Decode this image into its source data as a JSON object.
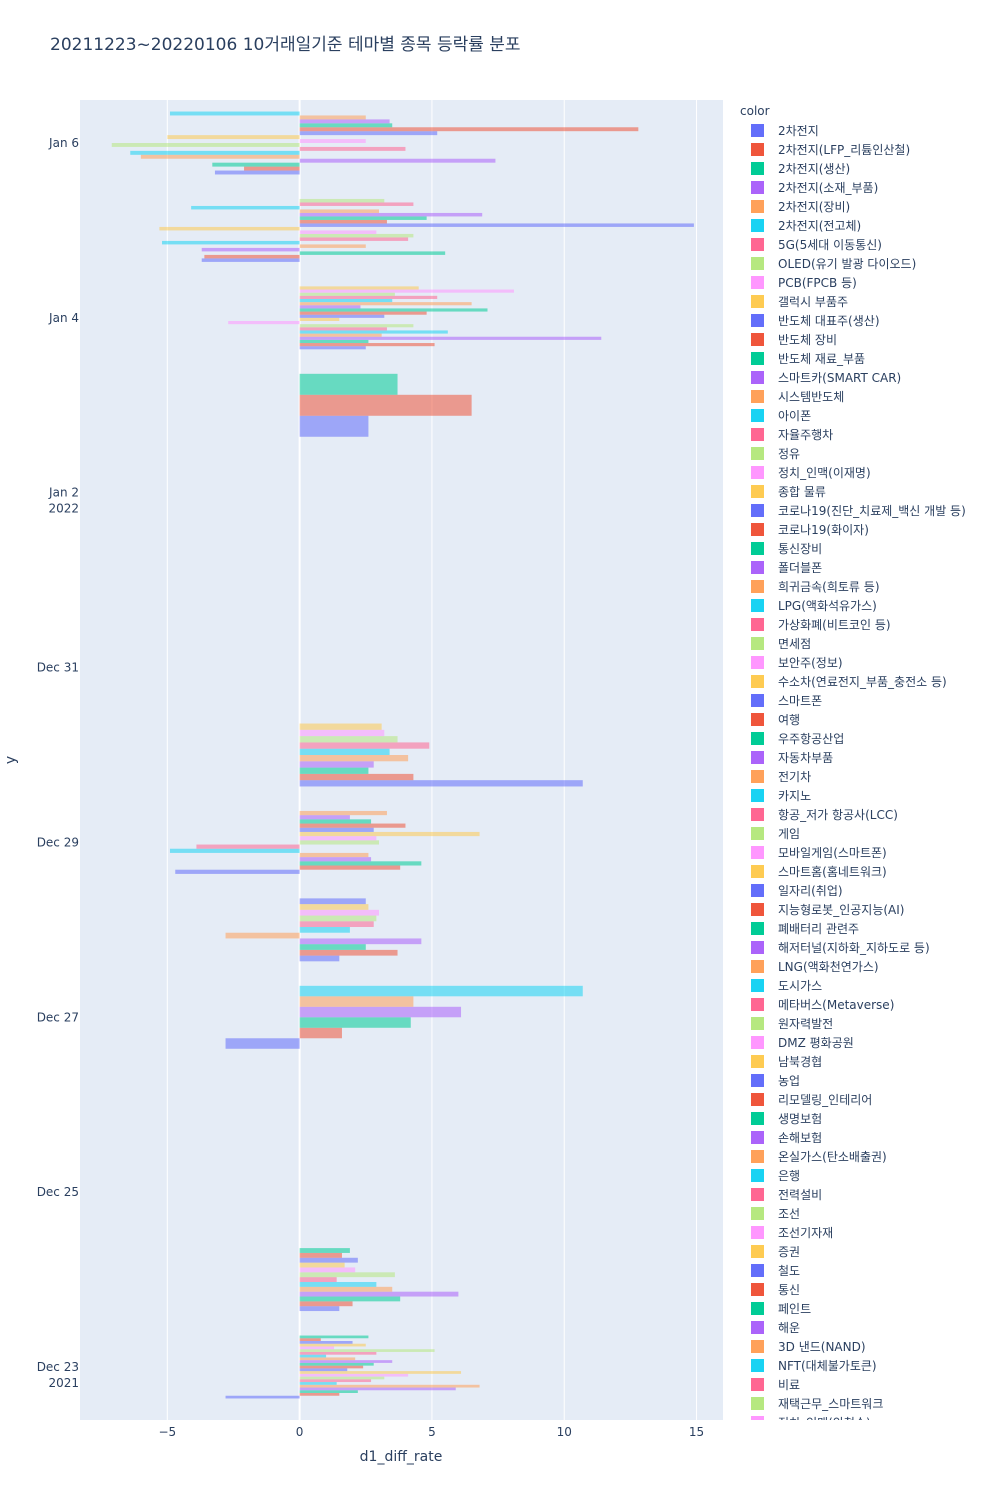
{
  "chart_data": {
    "type": "bar",
    "orientation": "horizontal",
    "title": "20211223~20220106 10거래일기준 테마별 종목 등락률 분포",
    "xlabel": "d1_diff_rate",
    "ylabel": "y",
    "xlim": [
      -8.3,
      16.0
    ],
    "x_ticks": [
      -5,
      0,
      5,
      10,
      15
    ],
    "x_tick_labels": [
      "−5",
      "0",
      "5",
      "10",
      "15"
    ],
    "y_ticks": [
      {
        "date": "2021-12-23",
        "label": "Dec 23",
        "sub": "2021"
      },
      {
        "date": "2021-12-25",
        "label": "Dec 25",
        "sub": ""
      },
      {
        "date": "2021-12-27",
        "label": "Dec 27",
        "sub": ""
      },
      {
        "date": "2021-12-29",
        "label": "Dec 29",
        "sub": ""
      },
      {
        "date": "2021-12-31",
        "label": "Dec 31",
        "sub": ""
      },
      {
        "date": "2022-01-02",
        "label": "Jan 2",
        "sub": "2022"
      },
      {
        "date": "2022-01-04",
        "label": "Jan 4",
        "sub": ""
      },
      {
        "date": "2022-01-06",
        "label": "Jan 6",
        "sub": ""
      }
    ],
    "legend_title": "color",
    "legend_placement": "right",
    "groups": [
      {
        "date": "2021-12-23",
        "values": [
          -2.8,
          1.5,
          2.2,
          5.9,
          6.8,
          1.4,
          2.7,
          3.2,
          4.1,
          6.1,
          1.8,
          2.4,
          2.8,
          3.5,
          2.1,
          1.0,
          2.9,
          5.1,
          1.3,
          2.5,
          2.0,
          0.8,
          2.6
        ]
      },
      {
        "date": "2021-12-24",
        "values": [
          1.5,
          2.0,
          3.8,
          6.0,
          3.5,
          2.9,
          1.4,
          3.6,
          2.1,
          1.7,
          2.2,
          1.6,
          1.9
        ]
      },
      {
        "date": "2021-12-27",
        "values": [
          -2.8,
          1.6,
          4.2,
          6.1,
          4.3,
          10.7
        ]
      },
      {
        "date": "2021-12-28",
        "values": [
          1.5,
          3.7,
          2.5,
          4.6,
          -2.8,
          1.9,
          2.8,
          2.9,
          3.0,
          2.6,
          2.5
        ]
      },
      {
        "date": "2021-12-29",
        "values": [
          -4.7,
          3.8,
          4.6,
          2.7,
          2.6,
          -4.9,
          -3.9,
          3.0,
          2.9,
          6.8,
          2.8,
          4.0,
          2.7,
          1.9,
          3.3
        ]
      },
      {
        "date": "2021-12-30",
        "values": [
          10.7,
          4.3,
          2.6,
          2.8,
          4.1,
          3.4,
          4.9,
          3.7,
          3.2,
          3.1
        ]
      },
      {
        "date": "2022-01-03",
        "values": [
          2.6,
          6.5,
          3.7
        ]
      },
      {
        "date": "2022-01-04",
        "values": [
          2.5,
          5.1,
          2.6,
          11.4,
          3.1,
          5.6,
          3.3,
          4.3,
          -2.7,
          1.5,
          3.2,
          4.8,
          7.1,
          2.3,
          6.5,
          3.5,
          5.2,
          3.6,
          8.1,
          4.5
        ]
      },
      {
        "date": "2022-01-05",
        "values": [
          -3.7,
          -3.6,
          5.5,
          -3.7,
          2.5,
          -5.2,
          4.1,
          4.3,
          2.9,
          -5.3,
          14.9,
          3.3,
          4.8,
          6.9,
          3.0,
          -4.1,
          4.3,
          3.2
        ]
      },
      {
        "date": "2022-01-06",
        "values": [
          -3.2,
          -2.1,
          -3.3,
          7.4,
          -6.0,
          -6.4,
          4.0,
          -7.1,
          2.5,
          -5.0,
          5.2,
          12.8,
          3.5,
          3.4,
          2.5,
          -4.9
        ]
      }
    ],
    "palette": [
      "#636efa",
      "#EF553B",
      "#00cc96",
      "#ab63fa",
      "#FFA15A",
      "#19d3f3",
      "#FF6692",
      "#B6E880",
      "#FF97FF",
      "#FECB52"
    ],
    "legend": [
      "2차전지",
      "2차전지(LFP_리튬인산철)",
      "2차전지(생산)",
      "2차전지(소재_부품)",
      "2차전지(장비)",
      "2차전지(전고체)",
      "5G(5세대 이동통신)",
      "OLED(유기 발광 다이오드)",
      "PCB(FPCB 등)",
      "갤럭시 부품주",
      "반도체 대표주(생산)",
      "반도체 장비",
      "반도체 재료_부품",
      "스마트카(SMART CAR)",
      "시스템반도체",
      "아이폰",
      "자율주행차",
      "정유",
      "정치_인맥(이재명)",
      "종합 물류",
      "코로나19(진단_치료제_백신 개발 등)",
      "코로나19(화이자)",
      "통신장비",
      "폴더블폰",
      "희귀금속(희토류 등)",
      "LPG(액화석유가스)",
      "가상화폐(비트코인 등)",
      "면세점",
      "보안주(정보)",
      "수소차(연료전지_부품_충전소 등)",
      "스마트폰",
      "여행",
      "우주항공산업",
      "자동차부품",
      "전기차",
      "카지노",
      "항공_저가 항공사(LCC)",
      "게임",
      "모바일게임(스마트폰)",
      "스마트홈(홈네트워크)",
      "일자리(취업)",
      "지능형로봇_인공지능(AI)",
      "폐배터리 관련주",
      "해저터널(지하화_지하도로 등)",
      "LNG(액화천연가스)",
      "도시가스",
      "메타버스(Metaverse)",
      "원자력발전",
      "DMZ 평화공원",
      "남북경협",
      "농업",
      "리모델링_인테리어",
      "생명보험",
      "손해보험",
      "온실가스(탄소배출권)",
      "은행",
      "전력설비",
      "조선",
      "조선기자재",
      "증권",
      "철도",
      "통신",
      "페인트",
      "해운",
      "3D 낸드(NAND)",
      "NFT(대체불가토큰)",
      "비료",
      "재택근무_스마트워크",
      "정치_인맥(안철수)"
    ]
  }
}
